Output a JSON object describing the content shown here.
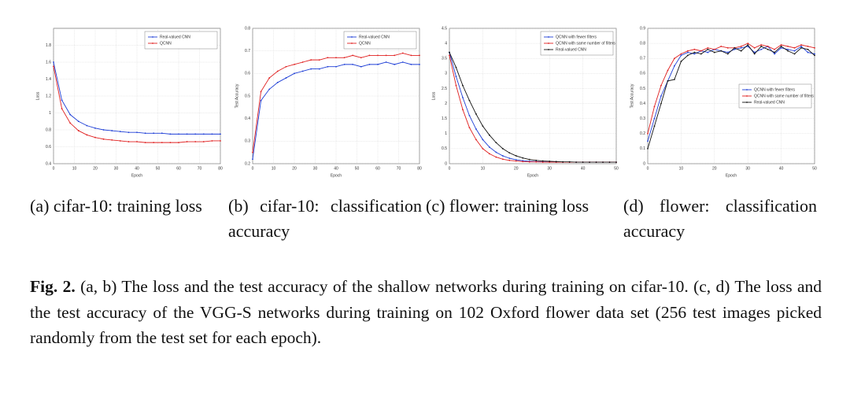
{
  "chart_data": [
    {
      "type": "line",
      "xlabel": "Epoch",
      "ylabel": "Loss",
      "caption": "(a) cifar-10: training loss",
      "x": [
        0,
        4,
        8,
        12,
        16,
        20,
        24,
        28,
        32,
        36,
        40,
        44,
        48,
        52,
        56,
        60,
        64,
        68,
        72,
        76,
        80
      ],
      "series": [
        {
          "name": "Real-valued CNN",
          "color": "#1f3fd6",
          "values": [
            1.6,
            1.15,
            0.98,
            0.9,
            0.85,
            0.82,
            0.8,
            0.79,
            0.78,
            0.77,
            0.77,
            0.76,
            0.76,
            0.76,
            0.75,
            0.75,
            0.75,
            0.75,
            0.75,
            0.75,
            0.75
          ]
        },
        {
          "name": "QCNN",
          "color": "#e02020",
          "values": [
            1.55,
            1.05,
            0.88,
            0.79,
            0.74,
            0.71,
            0.69,
            0.68,
            0.67,
            0.66,
            0.66,
            0.65,
            0.65,
            0.65,
            0.65,
            0.65,
            0.66,
            0.66,
            0.66,
            0.67,
            0.67
          ]
        }
      ],
      "xlim": [
        0,
        80
      ],
      "xticks": [
        0,
        10,
        20,
        30,
        40,
        50,
        60,
        70,
        80
      ],
      "ylim": [
        0.4,
        2
      ],
      "yticks": [
        0.4,
        0.6,
        0.8,
        1,
        1.2,
        1.4,
        1.6,
        1.8
      ],
      "grid": true,
      "legend": "upper right"
    },
    {
      "type": "line",
      "xlabel": "Epoch",
      "ylabel": "Test Accuracy",
      "caption": "(b) cifar-10: classification accuracy",
      "x": [
        0,
        4,
        8,
        12,
        16,
        20,
        24,
        28,
        32,
        36,
        40,
        44,
        48,
        52,
        56,
        60,
        64,
        68,
        72,
        76,
        80
      ],
      "series": [
        {
          "name": "Real-valued CNN",
          "color": "#1f3fd6",
          "values": [
            0.22,
            0.48,
            0.53,
            0.56,
            0.58,
            0.6,
            0.61,
            0.62,
            0.62,
            0.63,
            0.63,
            0.64,
            0.64,
            0.63,
            0.64,
            0.64,
            0.65,
            0.64,
            0.65,
            0.64,
            0.64
          ]
        },
        {
          "name": "QCNN",
          "color": "#e02020",
          "values": [
            0.25,
            0.52,
            0.58,
            0.61,
            0.63,
            0.64,
            0.65,
            0.66,
            0.66,
            0.67,
            0.67,
            0.67,
            0.68,
            0.67,
            0.68,
            0.68,
            0.68,
            0.68,
            0.69,
            0.68,
            0.68
          ]
        }
      ],
      "xlim": [
        0,
        80
      ],
      "xticks": [
        0,
        10,
        20,
        30,
        40,
        50,
        60,
        70,
        80
      ],
      "ylim": [
        0.2,
        0.8
      ],
      "yticks": [
        0.2,
        0.3,
        0.4,
        0.5,
        0.6,
        0.7,
        0.8
      ],
      "grid": true,
      "legend": "upper right"
    },
    {
      "type": "line",
      "xlabel": "Epoch",
      "ylabel": "Loss",
      "caption": "(c) flower: training loss",
      "x": [
        0,
        2,
        4,
        6,
        8,
        10,
        12,
        14,
        16,
        18,
        20,
        22,
        24,
        26,
        28,
        30,
        32,
        34,
        36,
        38,
        40,
        42,
        44,
        46,
        48,
        50
      ],
      "series": [
        {
          "name": "QCNN with fewer filters",
          "color": "#1f3fd6",
          "values": [
            3.7,
            2.9,
            2.2,
            1.6,
            1.15,
            0.8,
            0.55,
            0.38,
            0.26,
            0.18,
            0.13,
            0.1,
            0.08,
            0.07,
            0.06,
            0.06,
            0.05,
            0.05,
            0.05,
            0.05,
            0.05,
            0.05,
            0.05,
            0.05,
            0.05,
            0.05
          ]
        },
        {
          "name": "QCNN with same number of filters",
          "color": "#e02020",
          "values": [
            3.6,
            2.6,
            1.8,
            1.2,
            0.8,
            0.5,
            0.33,
            0.22,
            0.15,
            0.11,
            0.09,
            0.07,
            0.06,
            0.06,
            0.05,
            0.05,
            0.05,
            0.05,
            0.05,
            0.05,
            0.05,
            0.05,
            0.05,
            0.05,
            0.05,
            0.05
          ]
        },
        {
          "name": "Real-valued CNN",
          "color": "#111111",
          "values": [
            3.7,
            3.2,
            2.6,
            2.1,
            1.65,
            1.25,
            0.95,
            0.7,
            0.5,
            0.36,
            0.26,
            0.19,
            0.14,
            0.11,
            0.09,
            0.08,
            0.07,
            0.06,
            0.06,
            0.05,
            0.05,
            0.05,
            0.05,
            0.05,
            0.05,
            0.05
          ]
        }
      ],
      "xlim": [
        0,
        50
      ],
      "xticks": [
        0,
        10,
        20,
        30,
        40,
        50
      ],
      "ylim": [
        0,
        4.5
      ],
      "yticks": [
        0,
        0.5,
        1,
        1.5,
        2,
        2.5,
        3,
        3.5,
        4,
        4.5
      ],
      "grid": true,
      "legend": "upper right"
    },
    {
      "type": "line",
      "xlabel": "Epoch",
      "ylabel": "Test Accuracy",
      "caption": "(d) flower: classification accuracy",
      "x": [
        0,
        2,
        4,
        6,
        8,
        10,
        12,
        14,
        16,
        18,
        20,
        22,
        24,
        26,
        28,
        30,
        32,
        34,
        36,
        38,
        40,
        42,
        44,
        46,
        48,
        50
      ],
      "series": [
        {
          "name": "QCNN with fewer filters",
          "color": "#1f3fd6",
          "values": [
            0.15,
            0.3,
            0.45,
            0.55,
            0.65,
            0.72,
            0.74,
            0.73,
            0.75,
            0.74,
            0.76,
            0.75,
            0.74,
            0.76,
            0.77,
            0.78,
            0.74,
            0.76,
            0.78,
            0.73,
            0.77,
            0.76,
            0.75,
            0.78,
            0.74,
            0.73
          ]
        },
        {
          "name": "QCNN with same number of filters",
          "color": "#e02020",
          "values": [
            0.2,
            0.38,
            0.52,
            0.62,
            0.7,
            0.73,
            0.75,
            0.76,
            0.75,
            0.77,
            0.76,
            0.78,
            0.77,
            0.77,
            0.78,
            0.8,
            0.77,
            0.79,
            0.78,
            0.76,
            0.79,
            0.78,
            0.77,
            0.79,
            0.78,
            0.77
          ]
        },
        {
          "name": "Real-valued CNN",
          "color": "#111111",
          "values": [
            0.1,
            0.25,
            0.4,
            0.55,
            0.56,
            0.68,
            0.72,
            0.74,
            0.73,
            0.76,
            0.74,
            0.75,
            0.73,
            0.77,
            0.75,
            0.79,
            0.73,
            0.78,
            0.76,
            0.74,
            0.78,
            0.75,
            0.73,
            0.77,
            0.76,
            0.72
          ]
        }
      ],
      "xlim": [
        0,
        50
      ],
      "xticks": [
        0,
        10,
        20,
        30,
        40,
        50
      ],
      "ylim": [
        0,
        0.9
      ],
      "yticks": [
        0,
        0.1,
        0.2,
        0.3,
        0.4,
        0.5,
        0.6,
        0.7,
        0.8,
        0.9
      ],
      "grid": true,
      "legend": "center right"
    }
  ],
  "figure_caption": {
    "label": "Fig. 2.",
    "text": "(a, b) The loss and the test accuracy of the shallow networks during training on cifar-10. (c, d) The loss and the test accuracy of the VGG-S networks during training on 102 Oxford flower data set (256 test images picked randomly from the test set for each epoch)."
  }
}
